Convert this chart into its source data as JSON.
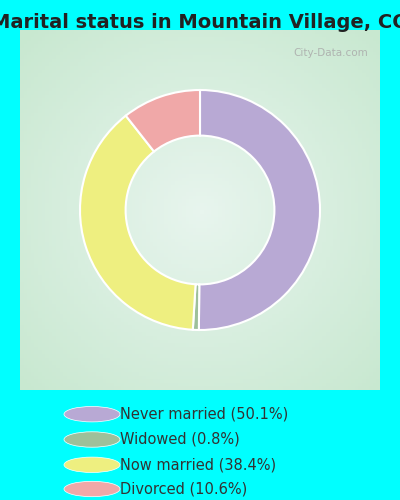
{
  "title": "Marital status in Mountain Village, CO",
  "slices": [
    50.1,
    0.8,
    38.4,
    10.6
  ],
  "colors": [
    "#b8a9d4",
    "#9ec09a",
    "#eeef80",
    "#f0a8a8"
  ],
  "legend_labels": [
    "Never married (50.1%)",
    "Widowed (0.8%)",
    "Now married (38.4%)",
    "Divorced (10.6%)"
  ],
  "legend_colors": [
    "#b8a9d4",
    "#9ec09a",
    "#eeef80",
    "#f0a8a8"
  ],
  "bg_color": "#00ffff",
  "chart_bg_outer": "#c8e8d0",
  "chart_bg_inner": "#e8f5ee",
  "watermark": "City-Data.com",
  "title_fontsize": 14,
  "donut_width": 0.38,
  "start_angle": 90,
  "title_color": "#222222",
  "legend_text_color": "#333333",
  "legend_fontsize": 10.5
}
